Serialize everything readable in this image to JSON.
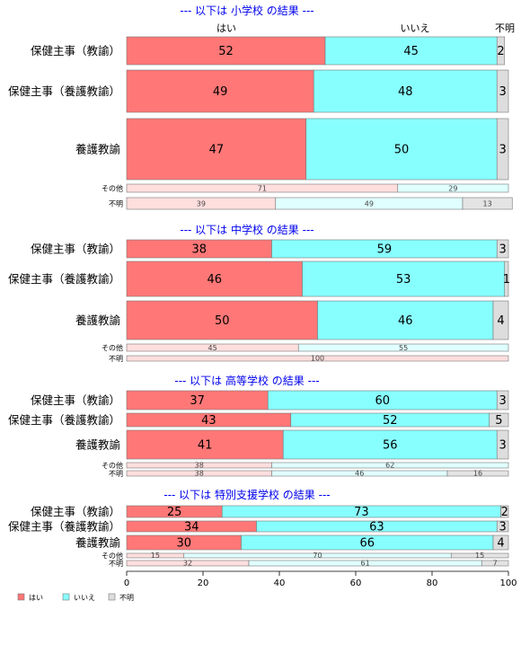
{
  "colors": {
    "yes": "#ff7777",
    "no": "#88ffff",
    "unknown": "#dddddd"
  },
  "legend": [
    {
      "key": "yes",
      "label": "はい"
    },
    {
      "key": "no",
      "label": "いいえ"
    },
    {
      "key": "unknown",
      "label": "不明"
    }
  ],
  "column_headers": [
    "はい",
    "いいえ",
    "不明"
  ],
  "chart_data": {
    "type": "bar",
    "orientation": "horizontal",
    "stacked": true,
    "series_names": [
      "はい",
      "いいえ",
      "不明"
    ],
    "xlim": [
      0,
      100
    ],
    "xticks": [
      0,
      20,
      40,
      60,
      80,
      100
    ],
    "sections": [
      {
        "title": "--- 以下は 小学校 の結果 ---",
        "rows": [
          {
            "label": "保健主事（教諭）",
            "values": [
              52,
              45,
              2
            ]
          },
          {
            "label": "保健主事（養護教諭）",
            "values": [
              49,
              48,
              3
            ]
          },
          {
            "label": "養護教諭",
            "values": [
              47,
              50,
              3
            ]
          },
          {
            "label": "その他",
            "values": [
              71,
              29,
              0
            ]
          },
          {
            "label": "不明",
            "values": [
              39,
              49,
              13
            ]
          }
        ]
      },
      {
        "title": "--- 以下は 中学校 の結果 ---",
        "rows": [
          {
            "label": "保健主事（教諭）",
            "values": [
              38,
              59,
              3
            ]
          },
          {
            "label": "保健主事（養護教諭）",
            "values": [
              46,
              53,
              1
            ]
          },
          {
            "label": "養護教諭",
            "values": [
              50,
              46,
              4
            ]
          },
          {
            "label": "その他",
            "values": [
              45,
              55,
              0
            ]
          },
          {
            "label": "不明",
            "values": [
              100,
              0,
              0
            ]
          }
        ]
      },
      {
        "title": "--- 以下は 高等学校 の結果 ---",
        "rows": [
          {
            "label": "保健主事（教諭）",
            "values": [
              37,
              60,
              3
            ]
          },
          {
            "label": "保健主事（養護教諭）",
            "values": [
              43,
              52,
              5
            ]
          },
          {
            "label": "養護教諭",
            "values": [
              41,
              56,
              3
            ]
          },
          {
            "label": "その他",
            "values": [
              38,
              62,
              0
            ]
          },
          {
            "label": "不明",
            "values": [
              38,
              46,
              16
            ]
          }
        ]
      },
      {
        "title": "--- 以下は 特別支援学校 の結果 ---",
        "rows": [
          {
            "label": "保健主事（教諭）",
            "values": [
              25,
              73,
              2
            ]
          },
          {
            "label": "保健主事（養護教諭）",
            "values": [
              34,
              63,
              3
            ]
          },
          {
            "label": "養護教諭",
            "values": [
              30,
              66,
              4
            ]
          },
          {
            "label": "その他",
            "values": [
              15,
              70,
              15
            ]
          },
          {
            "label": "不明",
            "values": [
              32,
              61,
              7
            ]
          }
        ]
      }
    ]
  }
}
